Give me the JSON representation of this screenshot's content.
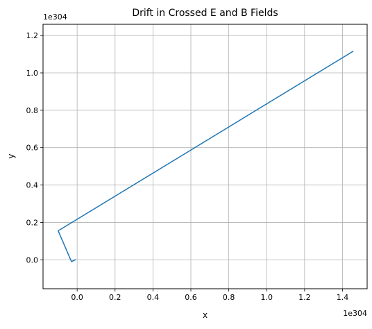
{
  "chart_data": {
    "type": "line",
    "title": "Drift in Crossed E and B Fields",
    "xlabel": "x",
    "ylabel": "y",
    "x_offset_text": "1e304",
    "y_offset_text": "1e304",
    "x_scale_exponent": 304,
    "y_scale_exponent": 304,
    "xlim": [
      -0.18,
      1.53
    ],
    "ylim": [
      -0.155,
      1.26
    ],
    "x_ticks": [
      {
        "value": 0.0,
        "label": "0.0"
      },
      {
        "value": 0.2,
        "label": "0.2"
      },
      {
        "value": 0.4,
        "label": "0.4"
      },
      {
        "value": 0.6,
        "label": "0.6"
      },
      {
        "value": 0.8,
        "label": "0.8"
      },
      {
        "value": 1.0,
        "label": "1.0"
      },
      {
        "value": 1.2,
        "label": "1.2"
      },
      {
        "value": 1.4,
        "label": "1.4"
      }
    ],
    "y_ticks": [
      {
        "value": 0.0,
        "label": "0.0"
      },
      {
        "value": 0.2,
        "label": "0.2"
      },
      {
        "value": 0.4,
        "label": "0.4"
      },
      {
        "value": 0.6,
        "label": "0.6"
      },
      {
        "value": 0.8,
        "label": "0.8"
      },
      {
        "value": 1.0,
        "label": "1.0"
      },
      {
        "value": 1.2,
        "label": "1.2"
      }
    ],
    "grid": true,
    "series": [
      {
        "color": "#1f77b4",
        "points": [
          {
            "x": -0.01,
            "y": -0.0
          },
          {
            "x": -0.03,
            "y": -0.01
          },
          {
            "x": -0.1,
            "y": 0.155
          },
          {
            "x": 1.455,
            "y": 1.115
          }
        ]
      }
    ]
  }
}
